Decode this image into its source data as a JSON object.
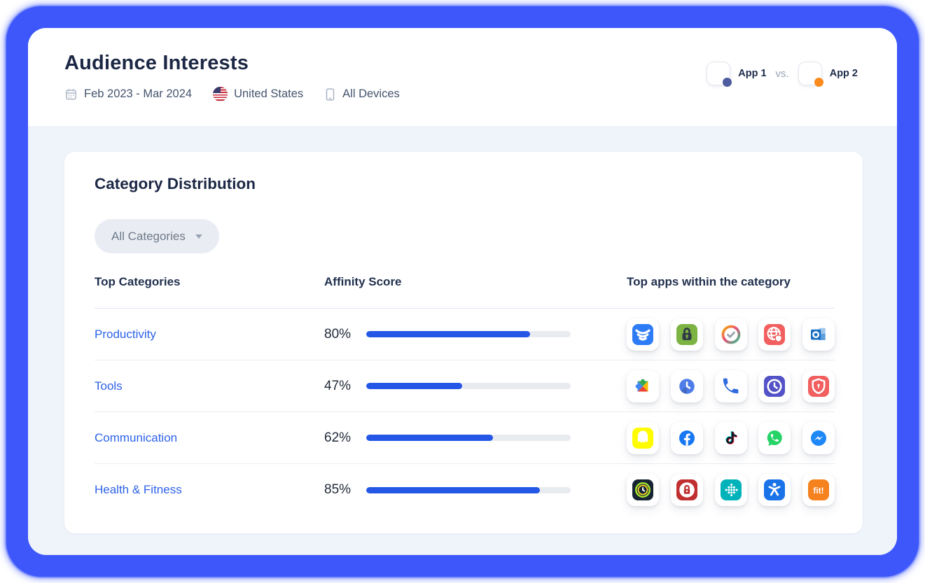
{
  "header": {
    "title": "Audience Interests",
    "date_range": "Feb 2023 - Mar 2024",
    "country": "United States",
    "devices": "All Devices",
    "compare": {
      "app1_label": "App 1",
      "vs_label": "vs.",
      "app2_label": "App 2",
      "app1_dot_color": "#4d5c9e",
      "app2_dot_color": "#fa8b1c"
    }
  },
  "card": {
    "title": "Category Distribution",
    "filter": {
      "label": "All Categories"
    },
    "columns": {
      "category": "Top Categories",
      "score": "Affinity Score",
      "apps": "Top apps within the category"
    },
    "link_color": "#2d62e9",
    "bar_color": "#2457e6",
    "track_color": "#e8ebef",
    "rows": [
      {
        "category": "Productivity",
        "score_label": "80%",
        "score_value": 80,
        "apps": [
          {
            "name": "security-layers-icon",
            "glyph": "layers",
            "bg": "#2e7cf5",
            "fg": "#ffffff"
          },
          {
            "name": "app-lock-icon",
            "glyph": "lock",
            "bg": "#7cb342",
            "fg": "#323c46"
          },
          {
            "name": "task-check-icon",
            "glyph": "check-ring",
            "bg": "#ffffff",
            "fg": "#9aa3ad"
          },
          {
            "name": "web-security-icon",
            "glyph": "globe-shield",
            "bg": "#f15f5f",
            "fg": "#ffffff"
          },
          {
            "name": "outlook-icon",
            "glyph": "outlook",
            "bg": "#ffffff",
            "fg": "#1a6fc4"
          }
        ]
      },
      {
        "category": "Tools",
        "score_label": "47%",
        "score_value": 47,
        "apps": [
          {
            "name": "play-services-icon",
            "glyph": "play-services",
            "bg": "#ffffff",
            "fg": "#34a853"
          },
          {
            "name": "world-clock-icon",
            "glyph": "circle-clock",
            "bg": "#ffffff",
            "fg": "#4e7ce8"
          },
          {
            "name": "phone-dialer-icon",
            "glyph": "phone",
            "bg": "#ffffff",
            "fg": "#2f6bdf"
          },
          {
            "name": "clock-app-icon",
            "glyph": "clock",
            "bg": "#5352c6",
            "fg": "#ffffff"
          },
          {
            "name": "shield-security-icon",
            "glyph": "shield",
            "bg": "#f15f5f",
            "fg": "#ffffff"
          }
        ]
      },
      {
        "category": "Communication",
        "score_label": "62%",
        "score_value": 62,
        "apps": [
          {
            "name": "snapchat-icon",
            "glyph": "ghost",
            "bg": "#fffc00",
            "fg": "#ffffff"
          },
          {
            "name": "facebook-icon",
            "glyph": "facebook",
            "bg": "#ffffff",
            "fg": "#1877f2"
          },
          {
            "name": "tiktok-icon",
            "glyph": "tiktok",
            "bg": "#ffffff",
            "fg": "#161823"
          },
          {
            "name": "whatsapp-icon",
            "glyph": "whatsapp",
            "bg": "#ffffff",
            "fg": "#25d366"
          },
          {
            "name": "messenger-icon",
            "glyph": "messenger",
            "bg": "#ffffff",
            "fg": "#1e88f7"
          }
        ]
      },
      {
        "category": "Health & Fitness",
        "score_label": "85%",
        "score_value": 85,
        "apps": [
          {
            "name": "sleep-tracker-icon",
            "glyph": "ring-clock",
            "bg": "#162433",
            "fg": "#a6e22e"
          },
          {
            "name": "privacy-lock-icon",
            "glyph": "circle-lock",
            "bg": "#c03030",
            "fg": "#ffffff"
          },
          {
            "name": "fitbit-icon",
            "glyph": "fitbit",
            "bg": "#00b2b9",
            "fg": "#ffffff"
          },
          {
            "name": "myfitnesspal-icon",
            "glyph": "gymnast",
            "bg": "#1a73e8",
            "fg": "#ffffff"
          },
          {
            "name": "fit-app-icon",
            "glyph": "fit-text",
            "bg": "#f5821f",
            "fg": "#ffffff",
            "text": "fit!"
          }
        ]
      }
    ]
  }
}
